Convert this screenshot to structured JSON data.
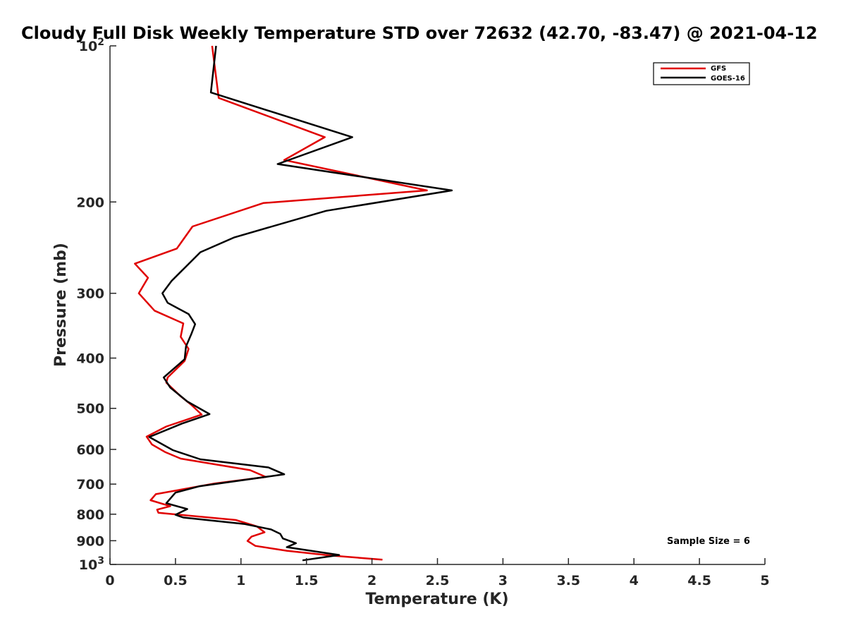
{
  "chart_data": {
    "type": "line",
    "title": "Cloudy Full Disk Weekly Temperature STD over 72632 (42.70, -83.47) @ 2021-04-12",
    "xlabel": "Temperature (K)",
    "ylabel": "Pressure (mb)",
    "xlim": [
      0,
      5
    ],
    "ylim": [
      100,
      1000
    ],
    "y_scale": "log",
    "y_reversed": true,
    "grid": false,
    "legend_position": "top-right",
    "x_ticks": [
      0,
      0.5,
      1,
      1.5,
      2,
      2.5,
      3,
      3.5,
      4,
      4.5,
      5
    ],
    "x_tick_labels": [
      "0",
      "0.5",
      "1",
      "1.5",
      "2",
      "2.5",
      "3",
      "3.5",
      "4",
      "4.5",
      "5"
    ],
    "y_tick_labels": [
      {
        "value": 100,
        "base": "10",
        "exp": "2"
      },
      {
        "value": 200,
        "base": "200",
        "exp": ""
      },
      {
        "value": 300,
        "base": "300",
        "exp": ""
      },
      {
        "value": 400,
        "base": "400",
        "exp": ""
      },
      {
        "value": 500,
        "base": "500",
        "exp": ""
      },
      {
        "value": 600,
        "base": "600",
        "exp": ""
      },
      {
        "value": 700,
        "base": "700",
        "exp": ""
      },
      {
        "value": 800,
        "base": "800",
        "exp": ""
      },
      {
        "value": 900,
        "base": "900",
        "exp": ""
      },
      {
        "value": 1000,
        "base": "10",
        "exp": "3"
      }
    ],
    "series": [
      {
        "name": "GFS",
        "color": "#e00000",
        "points": [
          [
            0.78,
            100
          ],
          [
            0.83,
            126
          ],
          [
            1.64,
            150
          ],
          [
            1.33,
            166
          ],
          [
            2.42,
            190
          ],
          [
            1.17,
            201
          ],
          [
            0.63,
            223
          ],
          [
            0.51,
            246
          ],
          [
            0.19,
            263
          ],
          [
            0.29,
            280
          ],
          [
            0.22,
            300
          ],
          [
            0.34,
            324
          ],
          [
            0.56,
            343
          ],
          [
            0.54,
            364
          ],
          [
            0.6,
            384
          ],
          [
            0.57,
            405
          ],
          [
            0.44,
            436
          ],
          [
            0.43,
            446
          ],
          [
            0.54,
            474
          ],
          [
            0.62,
            492
          ],
          [
            0.7,
            514
          ],
          [
            0.43,
            542
          ],
          [
            0.28,
            567
          ],
          [
            0.32,
            587
          ],
          [
            0.42,
            607
          ],
          [
            0.54,
            625
          ],
          [
            1.07,
            658
          ],
          [
            1.19,
            678
          ],
          [
            0.8,
            698
          ],
          [
            0.35,
            732
          ],
          [
            0.31,
            752
          ],
          [
            0.46,
            772
          ],
          [
            0.36,
            784
          ],
          [
            0.37,
            795
          ],
          [
            0.96,
            821
          ],
          [
            1.12,
            844
          ],
          [
            1.18,
            867
          ],
          [
            1.08,
            884
          ],
          [
            1.05,
            901
          ],
          [
            1.11,
            921
          ],
          [
            1.35,
            941
          ],
          [
            1.68,
            961
          ],
          [
            2.08,
            979
          ]
        ]
      },
      {
        "name": "GOES-16",
        "color": "#000000",
        "points": [
          [
            0.81,
            100
          ],
          [
            0.77,
            123
          ],
          [
            1.85,
            150
          ],
          [
            1.28,
            169
          ],
          [
            2.61,
            190
          ],
          [
            1.65,
            208
          ],
          [
            0.95,
            234
          ],
          [
            0.69,
            250
          ],
          [
            0.57,
            268
          ],
          [
            0.47,
            284
          ],
          [
            0.4,
            300
          ],
          [
            0.44,
            313
          ],
          [
            0.6,
            329
          ],
          [
            0.65,
            344
          ],
          [
            0.62,
            360
          ],
          [
            0.58,
            380
          ],
          [
            0.57,
            402
          ],
          [
            0.41,
            436
          ],
          [
            0.46,
            456
          ],
          [
            0.59,
            485
          ],
          [
            0.76,
            513
          ],
          [
            0.55,
            535
          ],
          [
            0.3,
            568
          ],
          [
            0.48,
            602
          ],
          [
            0.69,
            627
          ],
          [
            1.21,
            650
          ],
          [
            1.33,
            670
          ],
          [
            0.68,
            707
          ],
          [
            0.5,
            727
          ],
          [
            0.43,
            762
          ],
          [
            0.59,
            782
          ],
          [
            0.5,
            802
          ],
          [
            0.56,
            812
          ],
          [
            1.03,
            836
          ],
          [
            1.23,
            856
          ],
          [
            1.3,
            873
          ],
          [
            1.32,
            891
          ],
          [
            1.42,
            910
          ],
          [
            1.35,
            926
          ],
          [
            1.75,
            959
          ],
          [
            1.47,
            982
          ]
        ]
      }
    ],
    "annotation": "Sample Size = 6"
  }
}
